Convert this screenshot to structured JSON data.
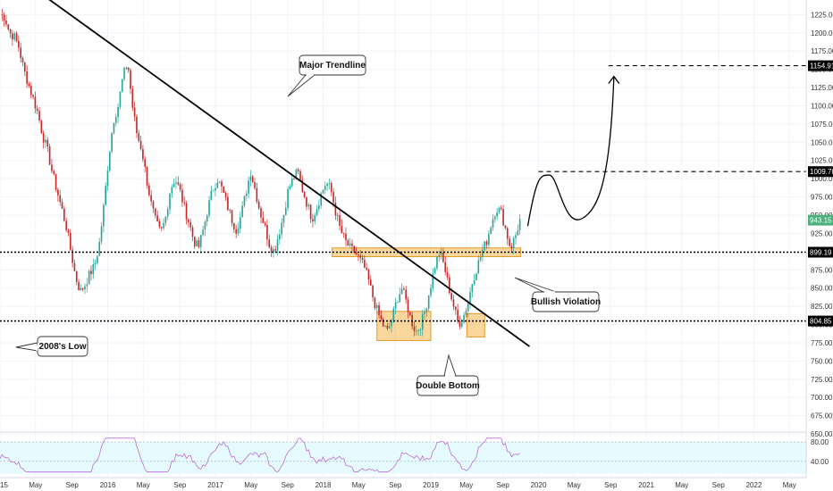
{
  "chart_data": {
    "type": "candlestick",
    "price_axis": {
      "ticks": [
        650,
        675,
        700,
        725,
        750,
        775,
        800,
        825,
        850,
        875,
        900,
        925,
        950,
        975,
        1000,
        1025,
        1050,
        1075,
        1100,
        1125,
        1150,
        1175,
        1200,
        1225
      ],
      "tick_labels": [
        "650.00",
        "675.00",
        "700.00",
        "725.00",
        "750.00",
        "775.00",
        "800.00",
        "825.00",
        "850.00",
        "875.00",
        "900.00",
        "925.00",
        "950.00",
        "975.00",
        "1000.00",
        "1025.00",
        "1050.00",
        "1075.00",
        "1100.00",
        "1125.00",
        "1150.00",
        "1175.00",
        "1200.00",
        "1225.00"
      ],
      "ylim": [
        655,
        1245
      ],
      "side": "right"
    },
    "time_axis": {
      "labels": [
        "15",
        "May",
        "Sep",
        "2016",
        "May",
        "Sep",
        "2017",
        "May",
        "Sep",
        "2018",
        "May",
        "Sep",
        "2019",
        "May",
        "Sep",
        "2020",
        "May",
        "Sep",
        "2021",
        "May",
        "Sep",
        "2022",
        "May"
      ]
    },
    "horizontal_levels": [
      {
        "value": 1154.91,
        "label": "1154.91",
        "style": "dashed",
        "color": "#000000"
      },
      {
        "value": 1009.7,
        "label": "1009.70",
        "style": "dashed",
        "color": "#000000"
      },
      {
        "value": 943.15,
        "label": "943.15",
        "style": "current-price",
        "color": "#4caf7d"
      },
      {
        "value": 899.19,
        "label": "899.19",
        "style": "dotted",
        "color": "#000000"
      },
      {
        "value": 804.85,
        "label": "804.85",
        "style": "dotted",
        "color": "#000000"
      }
    ],
    "annotations": [
      {
        "text": "Major Trendline"
      },
      {
        "text": "2008's Low"
      },
      {
        "text": "Double Bottom"
      },
      {
        "text": "Bullish Violation"
      }
    ],
    "zones": [
      {
        "name": "resistance-turned-support",
        "from": "2018-Feb",
        "to": "2019-Nov",
        "low": 893,
        "high": 905
      },
      {
        "name": "double-bottom-left",
        "from": "2018-Jul",
        "to": "2019-Jan",
        "low": 778,
        "high": 818
      },
      {
        "name": "double-bottom-right",
        "from": "2019-May",
        "to": "2019-Jul",
        "low": 783,
        "high": 815
      }
    ],
    "trendline": {
      "from": {
        "date": "2015-Jun",
        "value": 1250
      },
      "to": {
        "date": "2019-Dec",
        "value": 770
      }
    },
    "projection": {
      "points": [
        [
          2019.9,
          935
        ],
        [
          2020.1,
          1005
        ],
        [
          2020.4,
          945
        ],
        [
          2020.7,
          1150
        ]
      ]
    },
    "price_closes": [
      1225,
      1222,
      1200,
      1195,
      1180,
      1150,
      1130,
      1110,
      1090,
      1060,
      1040,
      1010,
      985,
      960,
      935,
      900,
      865,
      845,
      855,
      870,
      880,
      910,
      965,
      1030,
      1080,
      1100,
      1140,
      1160,
      1100,
      1060,
      1040,
      1000,
      965,
      940,
      925,
      945,
      985,
      1000,
      985,
      960,
      940,
      915,
      905,
      930,
      960,
      985,
      1000,
      985,
      965,
      945,
      930,
      950,
      980,
      1010,
      985,
      955,
      935,
      910,
      900,
      925,
      950,
      985,
      1000,
      1010,
      985,
      965,
      945,
      960,
      980,
      995,
      985,
      955,
      930,
      915,
      905,
      900,
      890,
      880,
      860,
      835,
      815,
      800,
      790,
      810,
      835,
      850,
      830,
      805,
      790,
      800,
      820,
      850,
      880,
      900,
      880,
      850,
      825,
      800,
      810,
      830,
      860,
      880,
      900,
      915,
      940,
      960,
      955,
      930,
      905,
      920,
      943
    ],
    "date_range": [
      "2015-Jan",
      "2019-Nov"
    ],
    "rsi": {
      "levels": [
        80,
        40
      ],
      "level_labels": [
        "80.00",
        "40.00"
      ],
      "band_color": "#e6fbff",
      "line_color": "#c06bd6"
    },
    "colors": {
      "up": "#26a69a",
      "down": "#c62828",
      "zone": "#f5a623"
    }
  }
}
